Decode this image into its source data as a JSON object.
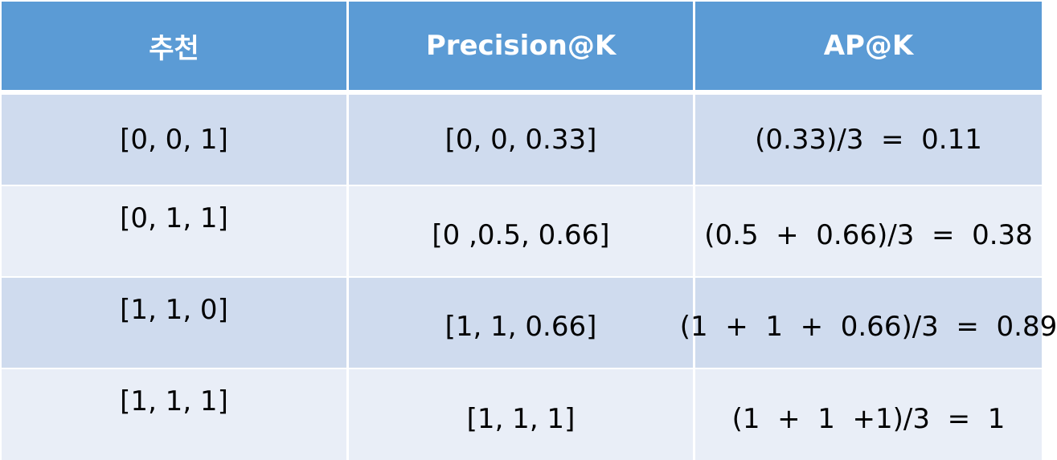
{
  "colors": {
    "header_bg": "#5b9bd5",
    "row_dark": "#cfdbee",
    "row_light": "#e9eef7",
    "header_text": "#ffffff"
  },
  "table": {
    "headers": [
      "추천",
      "Precision@K",
      "AP@K"
    ],
    "rows": [
      {
        "recommendation": "[0, 0, 1]",
        "precision": "[0, 0, 0.33]",
        "ap": "(0.33)/3  =  0.11"
      },
      {
        "recommendation": "[0, 1, 1]",
        "precision": "[0 ,0.5, 0.66]",
        "ap": "(0.5  +  0.66)/3  =  0.38"
      },
      {
        "recommendation": "[1, 1, 0]",
        "precision": "[1, 1, 0.66]",
        "ap": "(1  +  1  +  0.66)/3  =  0.89"
      },
      {
        "recommendation": "[1, 1, 1]",
        "precision": "[1, 1, 1]",
        "ap": "(1  +  1  +1)/3  =  1"
      }
    ]
  }
}
